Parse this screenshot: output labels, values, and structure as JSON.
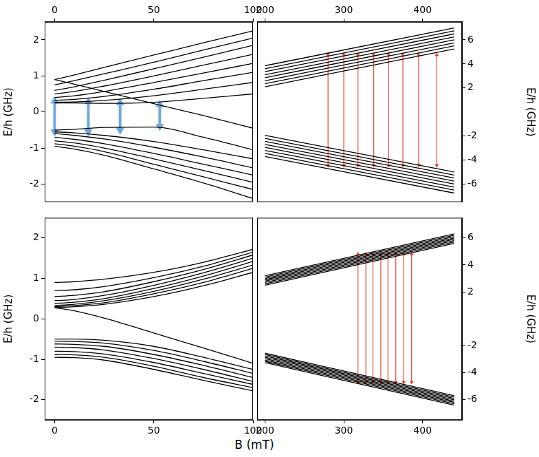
{
  "x_label": "B (mT)",
  "chart_data": [
    {
      "type": "line",
      "y_label": "E/h (GHz)",
      "color": "#000000",
      "grid": false,
      "xlim": [
        -5,
        100
      ],
      "xticks": [
        0,
        50,
        100
      ],
      "ylim": [
        -2.5,
        2.5
      ],
      "yticks": [
        -2,
        -1,
        0,
        1,
        2
      ],
      "x": [
        0,
        10,
        25,
        50,
        75,
        100
      ],
      "series": [
        {
          "values": [
            0.9,
            1.03,
            1.24,
            1.58,
            1.92,
            2.25
          ]
        },
        {
          "values": [
            0.75,
            0.87,
            1.06,
            1.38,
            1.72,
            2.05
          ]
        },
        {
          "values": [
            0.6,
            0.7,
            0.88,
            1.2,
            1.52,
            1.85
          ]
        },
        {
          "values": [
            0.5,
            0.57,
            0.72,
            1.0,
            1.3,
            1.6
          ]
        },
        {
          "values": [
            0.4,
            0.45,
            0.57,
            0.82,
            1.08,
            1.35
          ]
        },
        {
          "values": [
            0.32,
            0.35,
            0.43,
            0.63,
            0.87,
            1.1
          ]
        },
        {
          "values": [
            0.27,
            0.28,
            0.32,
            0.45,
            0.63,
            0.82
          ]
        },
        {
          "values": [
            0.25,
            0.25,
            0.24,
            0.27,
            0.38,
            0.5
          ]
        },
        {
          "values": [
            0.9,
            0.77,
            0.57,
            0.23,
            -0.1,
            -0.45
          ]
        },
        {
          "values": [
            -0.5,
            -0.48,
            -0.43,
            -0.42,
            -0.7,
            -1.05
          ]
        },
        {
          "values": [
            -0.55,
            -0.58,
            -0.65,
            -0.82,
            -1.05,
            -1.3
          ]
        },
        {
          "values": [
            -0.6,
            -0.65,
            -0.75,
            -0.98,
            -1.25,
            -1.55
          ]
        },
        {
          "values": [
            -0.7,
            -0.76,
            -0.88,
            -1.15,
            -1.45,
            -1.75
          ]
        },
        {
          "values": [
            -0.8,
            -0.86,
            -1.0,
            -1.3,
            -1.62,
            -1.95
          ]
        },
        {
          "values": [
            -0.88,
            -0.95,
            -1.1,
            -1.45,
            -1.8,
            -2.15
          ]
        },
        {
          "values": [
            -0.95,
            -1.03,
            -1.2,
            -1.58,
            -1.97,
            -2.4
          ]
        }
      ],
      "transitions": {
        "color": "#6fa8dc",
        "x": [
          0,
          17,
          33,
          53
        ],
        "from": [
          -0.55,
          -0.55,
          -0.5,
          -0.4
        ],
        "to": [
          0.3,
          0.28,
          0.25,
          0.2
        ]
      }
    },
    {
      "type": "line",
      "y_label": "E/h (GHz)",
      "color": "#000000",
      "grid": false,
      "xlim": [
        190,
        450
      ],
      "xticks": [
        200,
        300,
        400
      ],
      "ylim": [
        -7.5,
        7.5
      ],
      "yticks": [
        -6,
        -4,
        -2,
        2,
        4,
        6
      ],
      "x": [
        200,
        440
      ],
      "series": [
        {
          "values": [
            3.85,
            7.0
          ]
        },
        {
          "values": [
            3.6,
            6.75
          ]
        },
        {
          "values": [
            3.35,
            6.5
          ]
        },
        {
          "values": [
            3.1,
            6.25
          ]
        },
        {
          "values": [
            2.85,
            6.0
          ]
        },
        {
          "values": [
            2.6,
            5.75
          ]
        },
        {
          "values": [
            2.35,
            5.5
          ]
        },
        {
          "values": [
            2.1,
            5.25
          ]
        },
        {
          "values": [
            -1.95,
            -5.0
          ]
        },
        {
          "values": [
            -2.2,
            -5.25
          ]
        },
        {
          "values": [
            -2.45,
            -5.5
          ]
        },
        {
          "values": [
            -2.7,
            -5.75
          ]
        },
        {
          "values": [
            -2.95,
            -6.0
          ]
        },
        {
          "values": [
            -3.2,
            -6.25
          ]
        },
        {
          "values": [
            -3.45,
            -6.5
          ]
        },
        {
          "values": [
            -3.7,
            -6.75
          ]
        }
      ],
      "transitions": {
        "color": "#e8453c",
        "x": [
          280,
          300,
          318,
          338,
          357,
          375,
          395,
          418
        ],
        "from": [
          -4.45,
          -4.45,
          -4.45,
          -4.45,
          -4.45,
          -4.45,
          -4.45,
          -4.45
        ],
        "to": [
          4.75,
          4.75,
          4.75,
          4.75,
          4.75,
          4.75,
          4.75,
          4.75
        ]
      }
    },
    {
      "type": "line",
      "y_label": "E/h (GHz)",
      "color": "#000000",
      "grid": false,
      "xlim": [
        -5,
        100
      ],
      "xticks": [
        0,
        50,
        100
      ],
      "ylim": [
        -2.5,
        2.5
      ],
      "yticks": [
        -2,
        -1,
        0,
        1,
        2
      ],
      "x": [
        0,
        10,
        25,
        50,
        75,
        100
      ],
      "series": [
        {
          "values": [
            0.9,
            0.92,
            0.98,
            1.15,
            1.4,
            1.72
          ]
        },
        {
          "values": [
            0.7,
            0.72,
            0.8,
            1.02,
            1.3,
            1.65
          ]
        },
        {
          "values": [
            0.55,
            0.58,
            0.67,
            0.92,
            1.22,
            1.58
          ]
        },
        {
          "values": [
            0.45,
            0.48,
            0.58,
            0.83,
            1.14,
            1.5
          ]
        },
        {
          "values": [
            0.38,
            0.41,
            0.5,
            0.75,
            1.06,
            1.42
          ]
        },
        {
          "values": [
            0.33,
            0.36,
            0.45,
            0.68,
            0.98,
            1.33
          ]
        },
        {
          "values": [
            0.3,
            0.33,
            0.4,
            0.62,
            0.9,
            1.25
          ]
        },
        {
          "values": [
            0.28,
            0.3,
            0.36,
            0.55,
            0.82,
            1.15
          ]
        },
        {
          "values": [
            0.28,
            0.2,
            0.02,
            -0.35,
            -0.72,
            -1.1
          ]
        },
        {
          "values": [
            -0.5,
            -0.5,
            -0.53,
            -0.68,
            -0.95,
            -1.25
          ]
        },
        {
          "values": [
            -0.55,
            -0.56,
            -0.6,
            -0.78,
            -1.05,
            -1.35
          ]
        },
        {
          "values": [
            -0.62,
            -0.63,
            -0.68,
            -0.88,
            -1.15,
            -1.45
          ]
        },
        {
          "values": [
            -0.7,
            -0.71,
            -0.77,
            -0.98,
            -1.25,
            -1.55
          ]
        },
        {
          "values": [
            -0.8,
            -0.81,
            -0.87,
            -1.08,
            -1.35,
            -1.62
          ]
        },
        {
          "values": [
            -0.88,
            -0.89,
            -0.95,
            -1.17,
            -1.45,
            -1.7
          ]
        },
        {
          "values": [
            -0.95,
            -0.96,
            -1.02,
            -1.25,
            -1.52,
            -1.78
          ]
        }
      ]
    },
    {
      "type": "line",
      "y_label": "E/h (GHz)",
      "color": "#000000",
      "grid": false,
      "xlim": [
        190,
        450
      ],
      "xticks": [
        200,
        300,
        400
      ],
      "ylim": [
        -7.5,
        7.5
      ],
      "yticks": [
        -6,
        -4,
        -2,
        2,
        4,
        6
      ],
      "x": [
        200,
        440
      ],
      "series": [
        {
          "values": [
            3.2,
            6.3
          ]
        },
        {
          "values": [
            3.1,
            6.2
          ]
        },
        {
          "values": [
            3.0,
            6.1
          ]
        },
        {
          "values": [
            2.9,
            6.0
          ]
        },
        {
          "values": [
            2.8,
            5.9
          ]
        },
        {
          "values": [
            2.7,
            5.8
          ]
        },
        {
          "values": [
            2.6,
            5.7
          ]
        },
        {
          "values": [
            2.5,
            5.6
          ]
        },
        {
          "values": [
            -2.55,
            -5.7
          ]
        },
        {
          "values": [
            -2.65,
            -5.8
          ]
        },
        {
          "values": [
            -2.75,
            -5.9
          ]
        },
        {
          "values": [
            -2.85,
            -6.0
          ]
        },
        {
          "values": [
            -2.95,
            -6.1
          ]
        },
        {
          "values": [
            -3.05,
            -6.2
          ]
        },
        {
          "values": [
            -3.15,
            -6.3
          ]
        },
        {
          "values": [
            -3.25,
            -6.4
          ]
        }
      ],
      "transitions": {
        "color": "#e8453c",
        "x": [
          318,
          328,
          337,
          347,
          356,
          366,
          376,
          386
        ],
        "from": [
          -4.7,
          -4.7,
          -4.7,
          -4.7,
          -4.7,
          -4.7,
          -4.7,
          -4.7
        ],
        "to": [
          4.8,
          4.8,
          4.8,
          4.8,
          4.8,
          4.8,
          4.8,
          4.8
        ]
      }
    }
  ]
}
